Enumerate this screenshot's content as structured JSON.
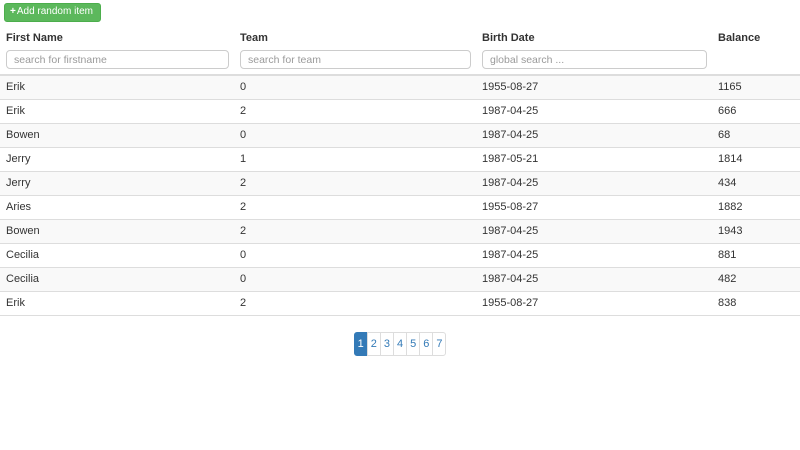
{
  "toolbar": {
    "add_button_label": "Add random item",
    "add_button_icon": "plus-icon",
    "add_button_color": "#5cb85c"
  },
  "table": {
    "columns": [
      {
        "label": "First Name",
        "placeholder": "search for firstname"
      },
      {
        "label": "Team",
        "placeholder": "search for team"
      },
      {
        "label": "Birth Date",
        "placeholder": "global search ..."
      },
      {
        "label": "Balance"
      }
    ],
    "rows": [
      [
        "Erik",
        "0",
        "1955-08-27",
        "1165"
      ],
      [
        "Erik",
        "2",
        "1987-04-25",
        "666"
      ],
      [
        "Bowen",
        "0",
        "1987-04-25",
        "68"
      ],
      [
        "Jerry",
        "1",
        "1987-05-21",
        "1814"
      ],
      [
        "Jerry",
        "2",
        "1987-04-25",
        "434"
      ],
      [
        "Aries",
        "2",
        "1955-08-27",
        "1882"
      ],
      [
        "Bowen",
        "2",
        "1987-04-25",
        "1943"
      ],
      [
        "Cecilia",
        "0",
        "1987-04-25",
        "881"
      ],
      [
        "Cecilia",
        "0",
        "1987-04-25",
        "482"
      ],
      [
        "Erik",
        "2",
        "1955-08-27",
        "838"
      ]
    ]
  },
  "pagination": {
    "pages": [
      "1",
      "2",
      "3",
      "4",
      "5",
      "6",
      "7"
    ],
    "active": "1"
  },
  "colors": {
    "accent_green": "#5cb85c",
    "accent_green_border": "#4cae4c",
    "pagination_blue": "#337ab7",
    "table_border": "#dddddd",
    "stripe_bg": "#f9f9f9",
    "text": "#333333",
    "placeholder_text": "#9a9a9a"
  }
}
